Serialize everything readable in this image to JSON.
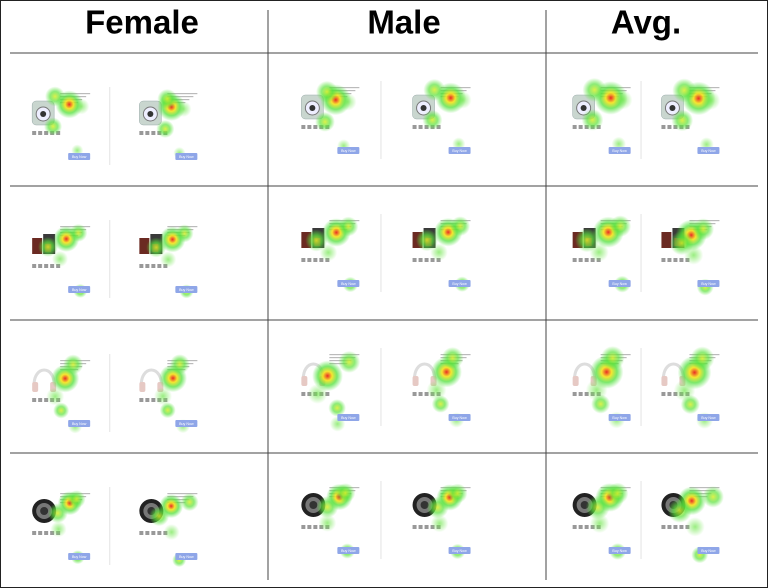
{
  "header": {
    "columns": [
      "Female",
      "Male",
      "Avg."
    ]
  },
  "button_label": "Buy Now"
}
